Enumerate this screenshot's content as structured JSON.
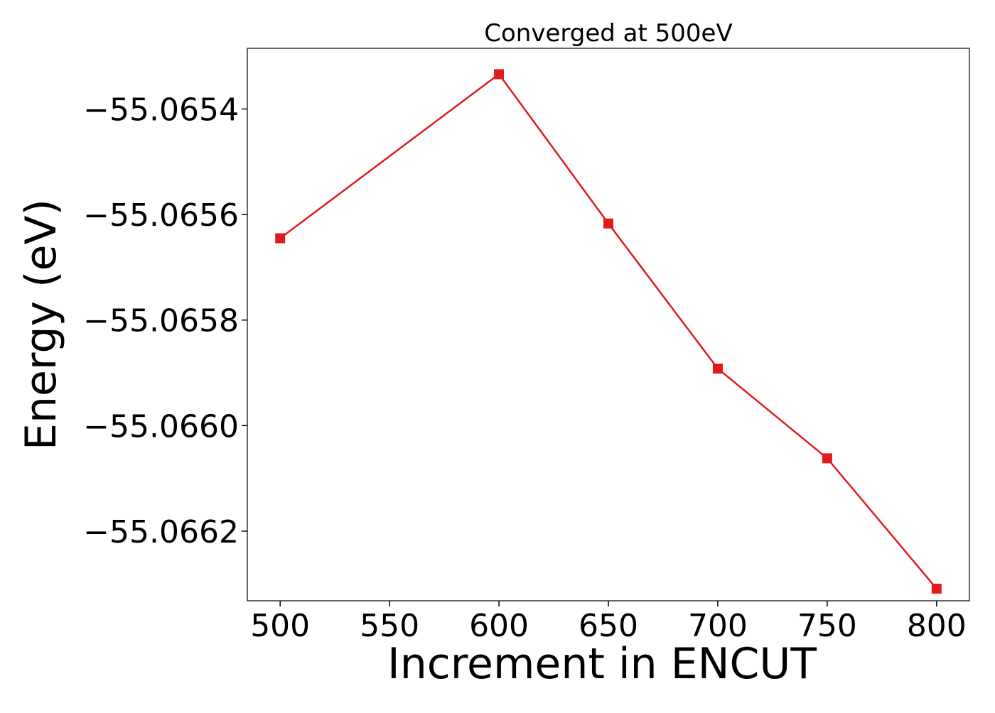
{
  "chart_data": {
    "type": "line",
    "title": "Converged at 500eV",
    "xlabel": "Increment in ENCUT",
    "ylabel": "Energy (eV)",
    "x": [
      500,
      600,
      650,
      700,
      750,
      800
    ],
    "series": [
      {
        "values": [
          -55.065645,
          -55.065334,
          -55.065617,
          -55.065892,
          -55.066062,
          -55.066309
        ],
        "color": "#e31a1c",
        "marker": "square"
      }
    ],
    "xticks": [
      500,
      550,
      600,
      650,
      700,
      750,
      800
    ],
    "xtick_labels": [
      "500",
      "550",
      "600",
      "650",
      "700",
      "750",
      "800"
    ],
    "yticks": [
      -55.0654,
      -55.0656,
      -55.0658,
      -55.066,
      -55.0662
    ],
    "ytick_labels": [
      "−55.0654",
      "−55.0656",
      "−55.0658",
      "−55.0660",
      "−55.0662"
    ],
    "xlim": [
      485,
      815
    ],
    "ylim": [
      -55.066332,
      -55.065285
    ],
    "grid": false,
    "legend": false
  }
}
